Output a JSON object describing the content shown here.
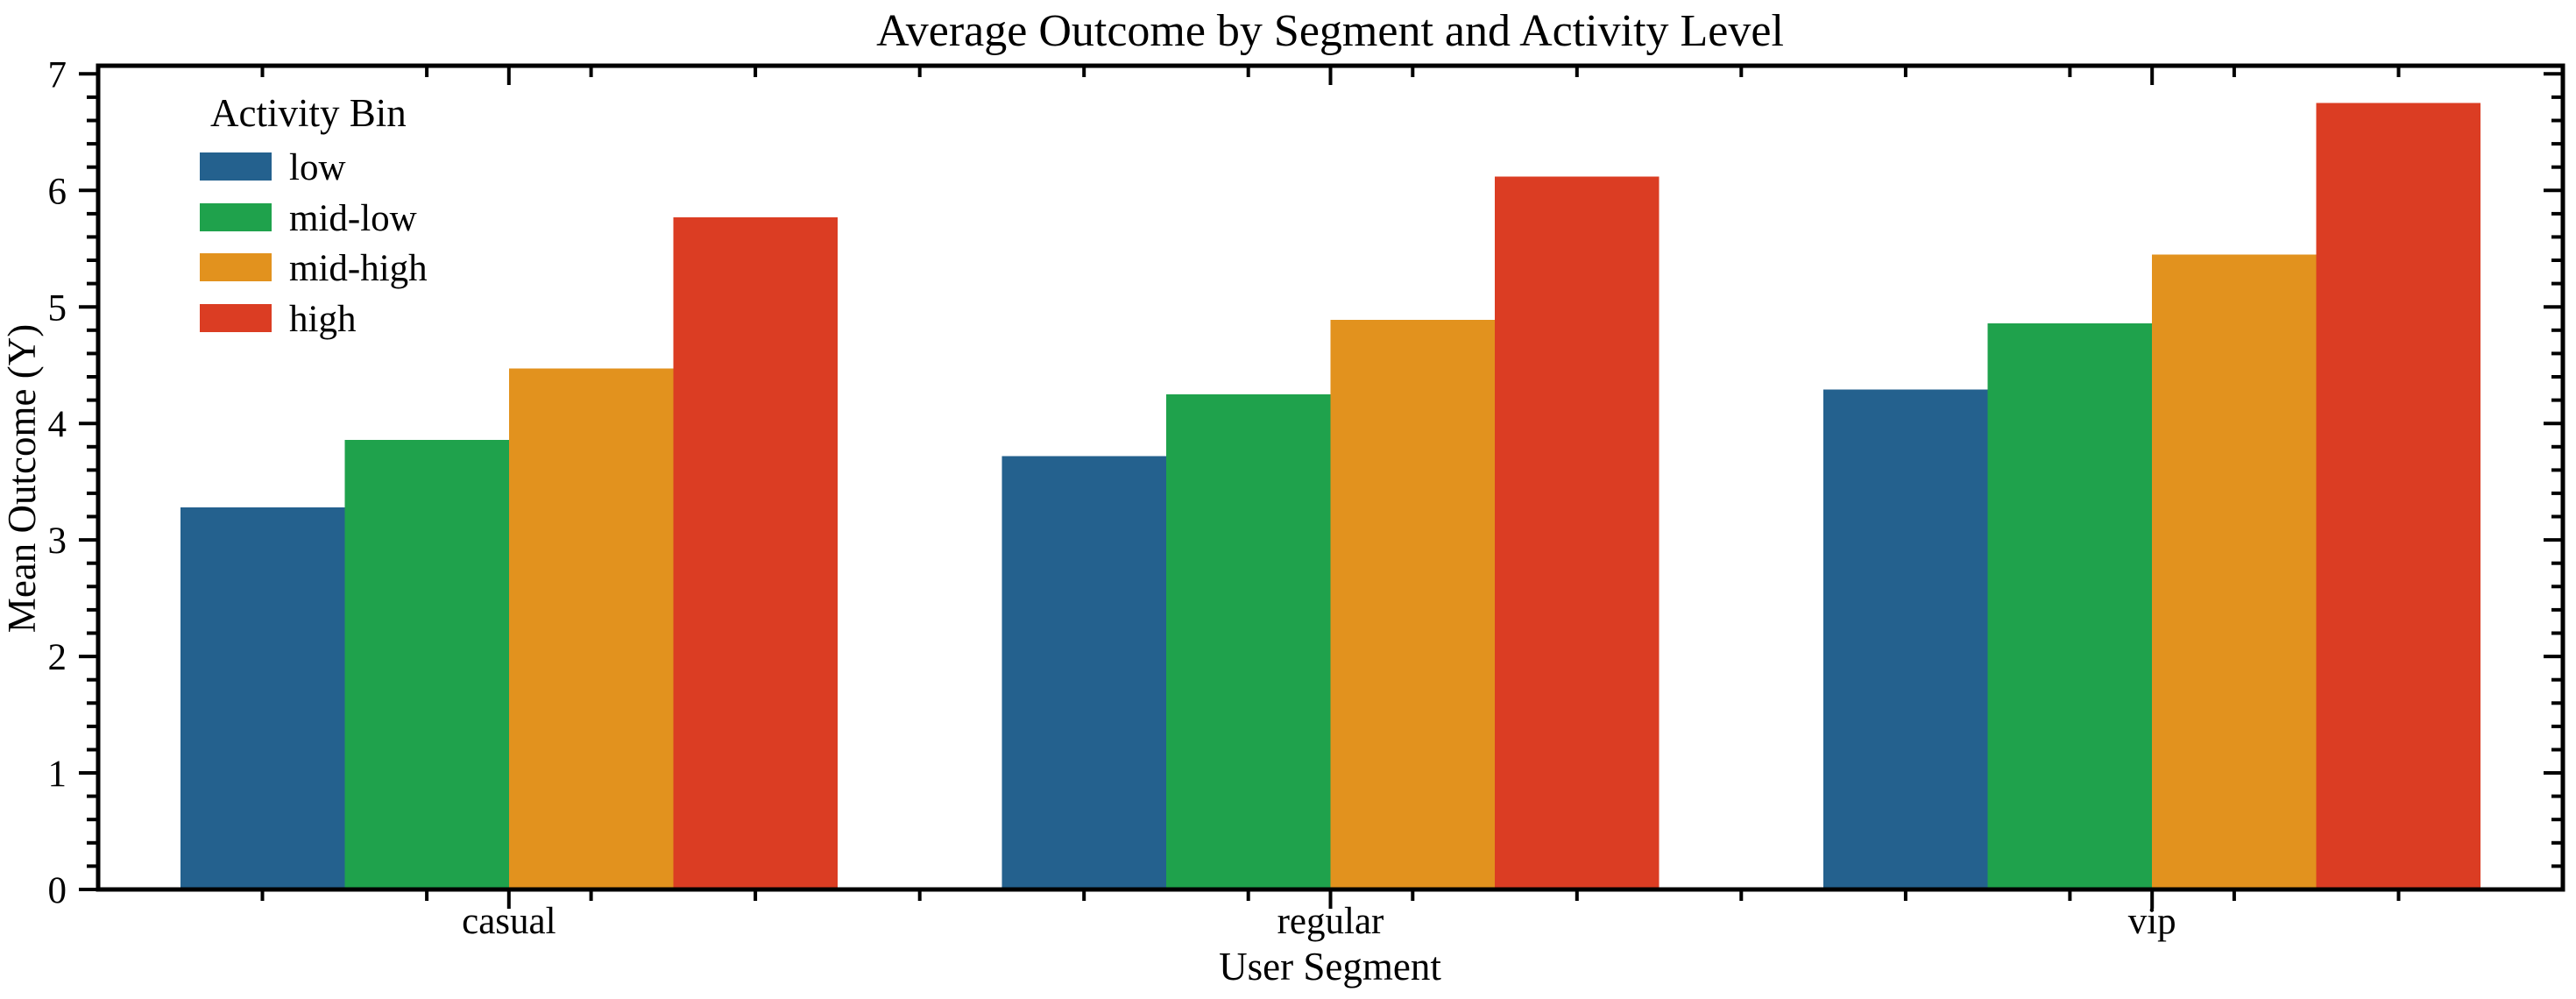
{
  "chart_data": {
    "type": "bar",
    "title": "Average Outcome by Segment and Activity Level",
    "xlabel": "User Segment",
    "ylabel": "Mean Outcome (Y)",
    "categories": [
      "casual",
      "regular",
      "vip"
    ],
    "series": [
      {
        "name": "low",
        "color": "#24618E",
        "values": [
          3.28,
          3.72,
          4.29
        ]
      },
      {
        "name": "mid-low",
        "color": "#1FA24C",
        "values": [
          3.86,
          4.25,
          4.86
        ]
      },
      {
        "name": "mid-high",
        "color": "#E2921E",
        "values": [
          4.47,
          4.89,
          5.45
        ]
      },
      {
        "name": "high",
        "color": "#DB3D23",
        "values": [
          5.77,
          6.12,
          6.75
        ]
      }
    ],
    "ylim": [
      0,
      7.07
    ],
    "yticks": [
      0,
      1,
      2,
      3,
      4,
      5,
      6,
      7
    ],
    "minor_tick_step_y": 0.2,
    "minor_tick_step_x": 0.2,
    "group_width": 0.8,
    "legend_title": "Activity Bin",
    "legend_position": "upper left",
    "grid": false,
    "axis_color": "#000000",
    "background_color": "#ffffff"
  }
}
